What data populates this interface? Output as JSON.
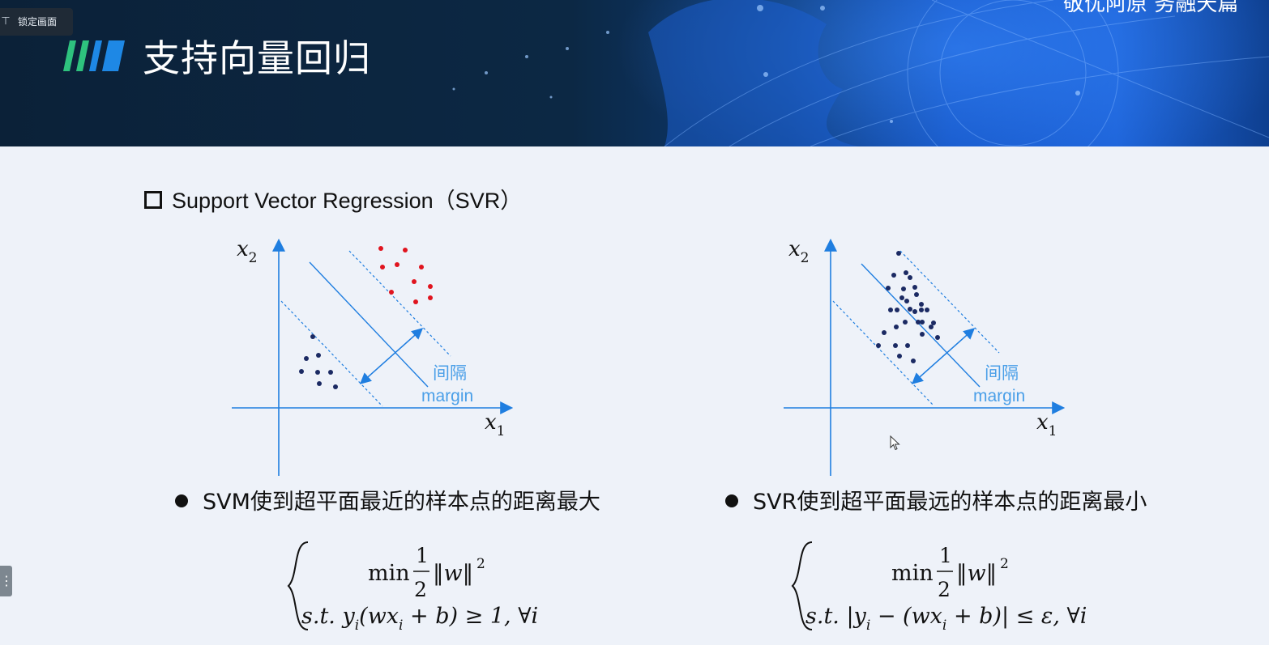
{
  "header": {
    "lock_button_label": "锁定画面",
    "title": "支持向量回归",
    "brand_text": "敬优阿原 务融天篇"
  },
  "section": {
    "subtitle": "Support Vector Regression（SVR）"
  },
  "diagrams": {
    "left": {
      "x_axis_label": "x",
      "x_axis_sub": "1",
      "y_axis_label": "x",
      "y_axis_sub": "2",
      "margin_label_cn": "间隔",
      "margin_label_en": "margin"
    },
    "right": {
      "x_axis_label": "x",
      "x_axis_sub": "1",
      "y_axis_label": "x",
      "y_axis_sub": "2",
      "margin_label_cn": "间隔",
      "margin_label_en": "margin"
    }
  },
  "bullets": {
    "svm": "SVM使到超平面最近的样本点的距离最大",
    "svr": "SVR使到超平面最远的样本点的距离最小"
  },
  "formulas": {
    "svm": {
      "min": "min",
      "num": "1",
      "den": "2",
      "norm": "‖w‖",
      "sq": "2",
      "constraint": "s.t.  y",
      "sub_i": "i",
      "c_mid": "(wx",
      "c_end": " + b) ≥ 1, ∀i"
    },
    "svr": {
      "min": "min",
      "num": "1",
      "den": "2",
      "norm": "‖w‖",
      "sq": "2",
      "constraint": "s.t. |y",
      "sub_i": "i",
      "c_mid": " − (wx",
      "c_end": " + b)| ≤ ε, ∀i"
    }
  },
  "colors": {
    "accent_blue": "#1f7ee0",
    "label_blue": "#4a9fe8",
    "navy_point": "#1b2a63",
    "red_point": "#e0141e",
    "slash_green": "#2ec27e",
    "slash_blue": "#1e88e5"
  },
  "icons": {
    "lock": "pin-icon",
    "side": "menu-handle-icon",
    "cursor": "mouse-cursor-icon"
  }
}
